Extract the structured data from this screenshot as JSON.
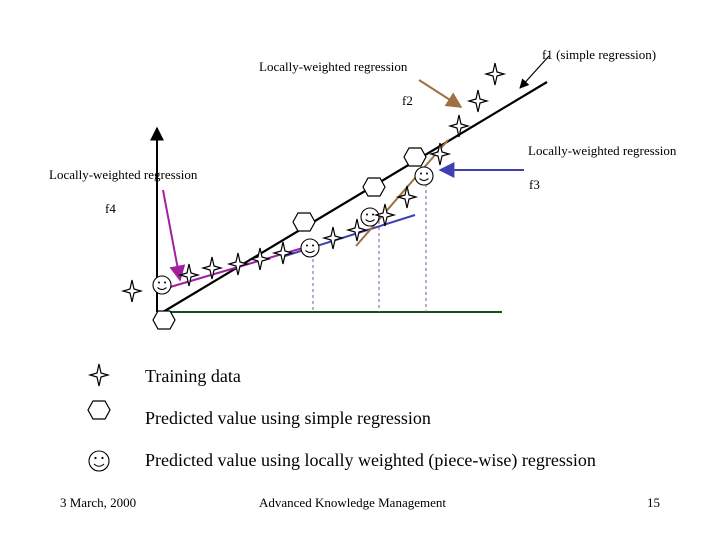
{
  "labels": {
    "f1": "f1 (simple regression)",
    "lwr_top": "Locally-weighted regression",
    "f2": "f2",
    "lwr_right": "Locally-weighted regression",
    "f3": "f3",
    "lwr_left": "Locally-weighted regression",
    "f4": "f4"
  },
  "legend": {
    "training": "Training data",
    "simple": "Predicted value using simple regression",
    "local": "Predicted value using locally weighted (piece-wise) regression"
  },
  "footer": {
    "date": "3 March, 2000",
    "title": "Advanced Knowledge Management",
    "page": "15"
  },
  "colors": {
    "simple_line": "#000000",
    "purple_segment": "#a020a0",
    "blue_segment": "#4040b0",
    "brown_segment": "#a07040",
    "axis_x": "#1a4d1a",
    "dashed": "#8050a0"
  },
  "icons": {
    "training": "four-point-star-icon",
    "simple": "hexagon-icon",
    "local": "smiley-icon"
  }
}
